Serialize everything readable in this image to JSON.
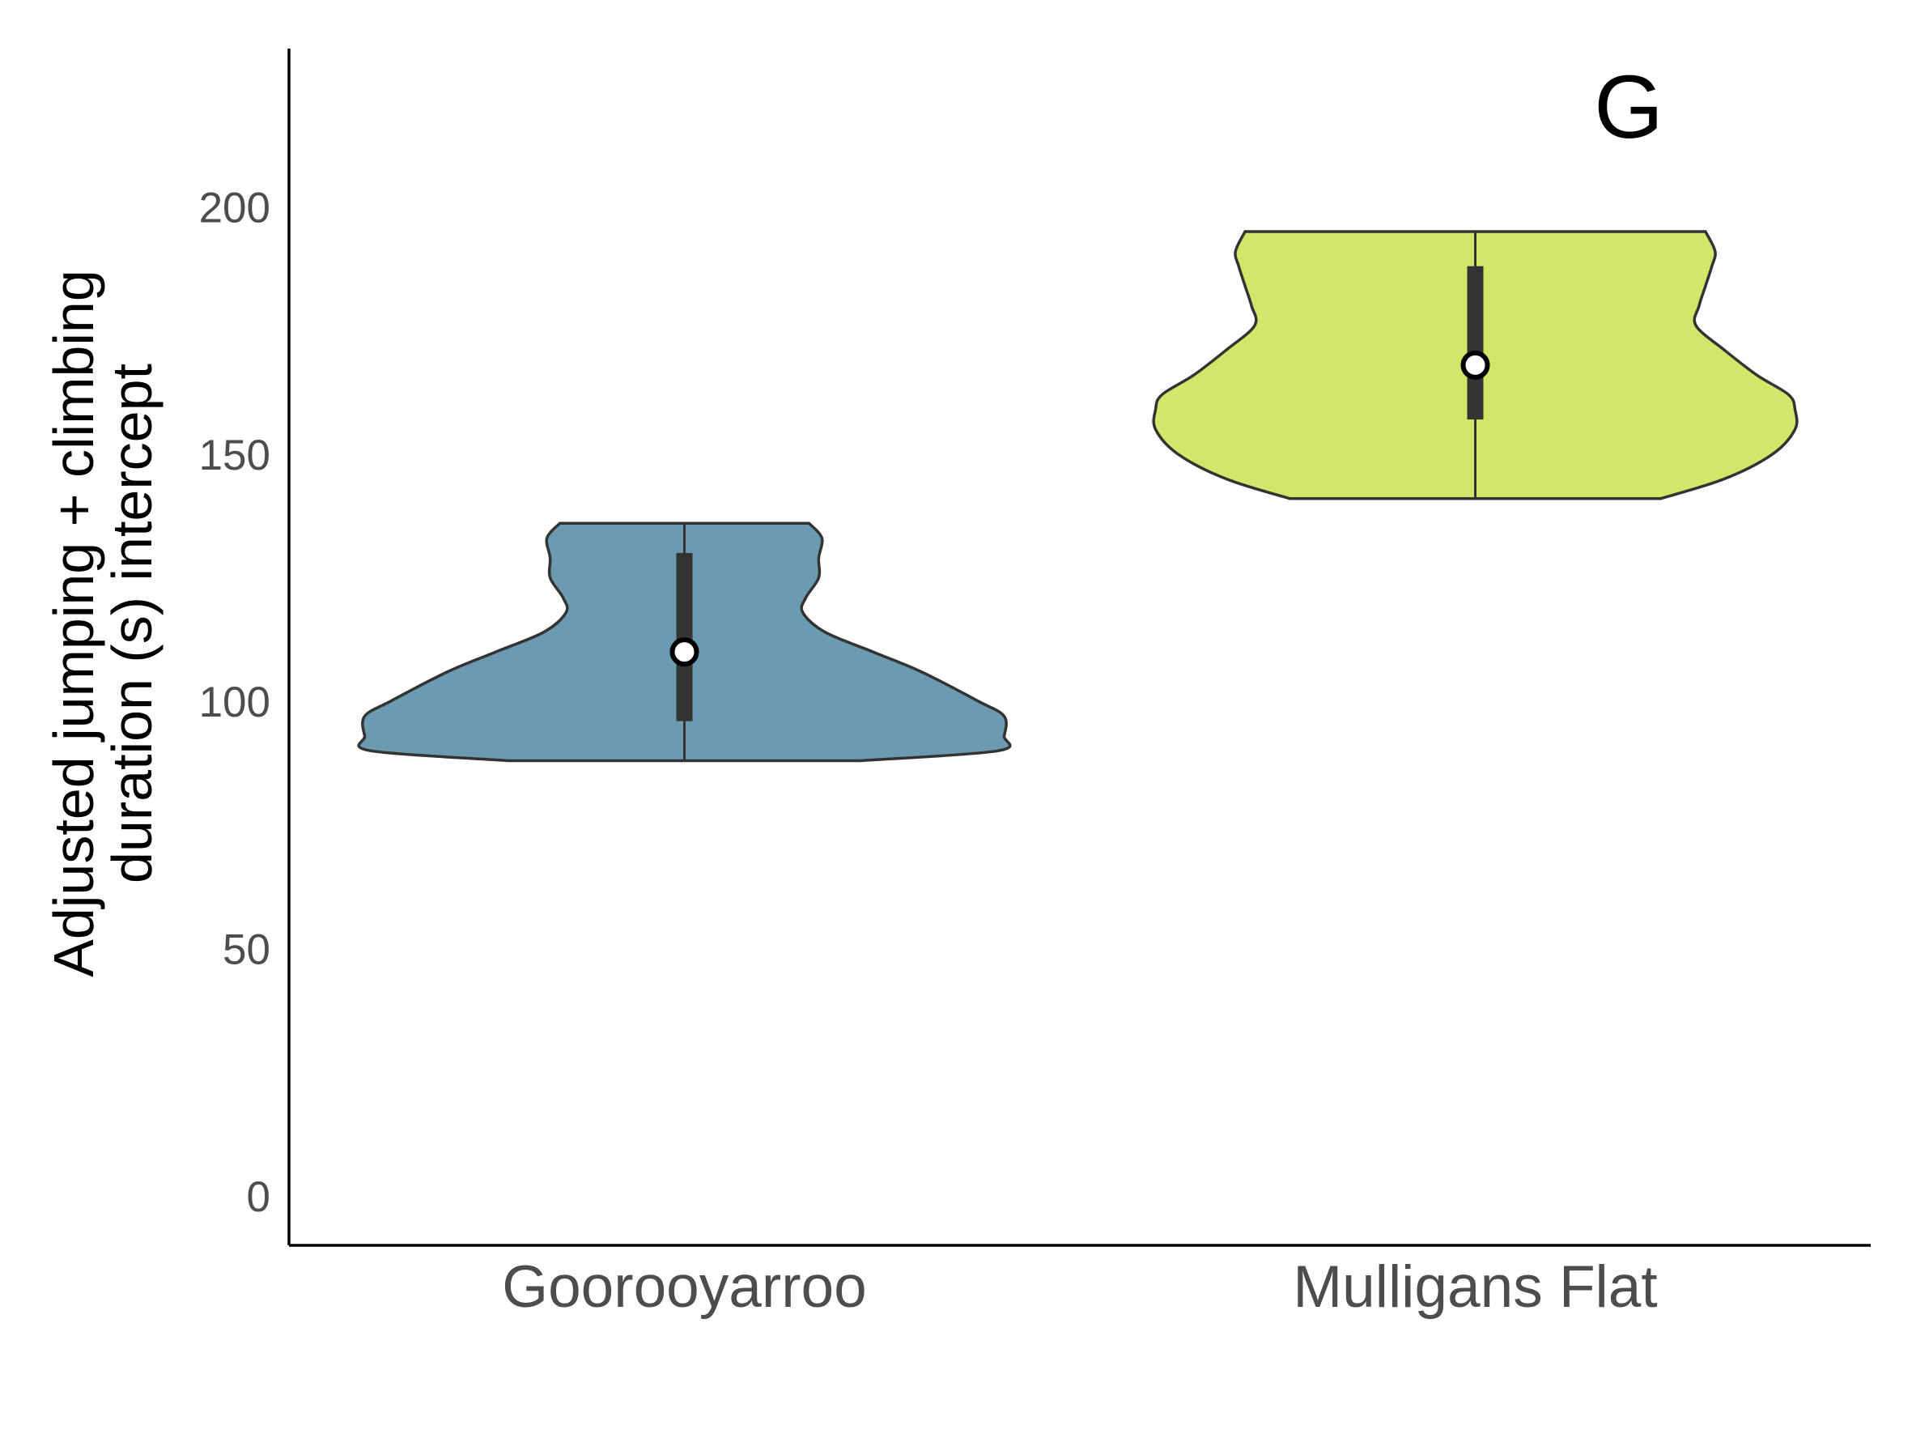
{
  "chart_data": {
    "type": "violin",
    "panel_label": "G",
    "ylabel": [
      "Adjusted jumping + climbing",
      "duration (s) intercept"
    ],
    "xlabel": "",
    "ylim": [
      -10,
      232
    ],
    "yticks": [
      0,
      50,
      100,
      150,
      200
    ],
    "grid": false,
    "legend": "none",
    "categories": [
      "Goorooyarroo",
      "Mulligans Flat"
    ],
    "series": [
      {
        "category": "Goorooyarroo",
        "color": "#6a9bb0",
        "min": 88,
        "max": 136,
        "median": 110,
        "q1": 96,
        "q3": 130,
        "density": [
          [
            88,
            0.55
          ],
          [
            90,
            0.98
          ],
          [
            93,
            1.0
          ],
          [
            97,
            1.0
          ],
          [
            100,
            0.92
          ],
          [
            106,
            0.74
          ],
          [
            110,
            0.59
          ],
          [
            114,
            0.44
          ],
          [
            118,
            0.37
          ],
          [
            121,
            0.38
          ],
          [
            125,
            0.42
          ],
          [
            129,
            0.42
          ],
          [
            133,
            0.43
          ],
          [
            136,
            0.39
          ]
        ]
      },
      {
        "category": "Mulligans Flat",
        "color": "#d0e76a",
        "min": 141,
        "max": 195,
        "median": 168,
        "q1": 157,
        "q3": 188,
        "density": [
          [
            141,
            0.58
          ],
          [
            145,
            0.78
          ],
          [
            150,
            0.93
          ],
          [
            155,
            1.0
          ],
          [
            159,
            1.0
          ],
          [
            162,
            0.98
          ],
          [
            166,
            0.88
          ],
          [
            171,
            0.78
          ],
          [
            176,
            0.69
          ],
          [
            180,
            0.7
          ],
          [
            184,
            0.72
          ],
          [
            188,
            0.74
          ],
          [
            191,
            0.75
          ],
          [
            195,
            0.72
          ]
        ]
      }
    ]
  }
}
